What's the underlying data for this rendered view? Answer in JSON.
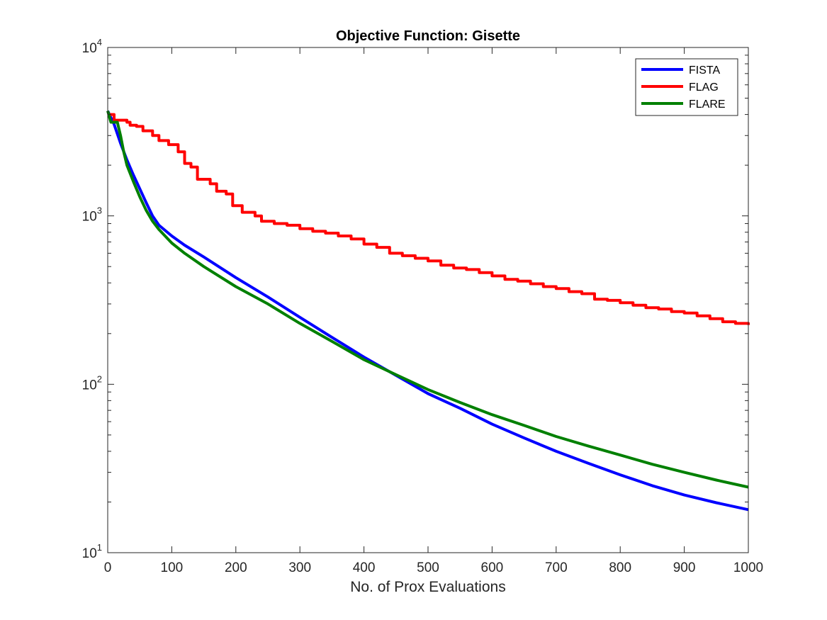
{
  "chart_data": {
    "type": "line",
    "title": "Objective Function: Gisette",
    "xlabel": "No. of Prox Evaluations",
    "ylabel": "",
    "xlim": [
      0,
      1000
    ],
    "ylim": [
      10,
      10000
    ],
    "yscale": "log",
    "grid": false,
    "legend_position": "top-right",
    "x_ticks": [
      0,
      100,
      200,
      300,
      400,
      500,
      600,
      700,
      800,
      900,
      1000
    ],
    "y_ticks": [
      {
        "value": 10,
        "base": "10",
        "exponent": "1"
      },
      {
        "value": 100,
        "base": "10",
        "exponent": "2"
      },
      {
        "value": 1000,
        "base": "10",
        "exponent": "3"
      },
      {
        "value": 10000,
        "base": "10",
        "exponent": "4"
      }
    ],
    "series": [
      {
        "name": "FISTA",
        "color": "#0000ff",
        "points": [
          [
            0,
            4200
          ],
          [
            10,
            3500
          ],
          [
            20,
            2700
          ],
          [
            30,
            2150
          ],
          [
            40,
            1750
          ],
          [
            50,
            1450
          ],
          [
            60,
            1200
          ],
          [
            70,
            1000
          ],
          [
            80,
            880
          ],
          [
            100,
            760
          ],
          [
            120,
            670
          ],
          [
            150,
            570
          ],
          [
            200,
            430
          ],
          [
            250,
            330
          ],
          [
            300,
            250
          ],
          [
            350,
            190
          ],
          [
            400,
            145
          ],
          [
            450,
            113
          ],
          [
            500,
            88
          ],
          [
            550,
            72
          ],
          [
            600,
            58
          ],
          [
            650,
            48
          ],
          [
            700,
            40
          ],
          [
            750,
            34
          ],
          [
            800,
            29
          ],
          [
            850,
            25
          ],
          [
            900,
            22
          ],
          [
            950,
            19.8
          ],
          [
            1000,
            18
          ]
        ]
      },
      {
        "name": "FLAG",
        "color": "#ff0000",
        "step": true,
        "points": [
          [
            0,
            4000
          ],
          [
            10,
            3700
          ],
          [
            30,
            3600
          ],
          [
            35,
            3450
          ],
          [
            45,
            3400
          ],
          [
            55,
            3200
          ],
          [
            70,
            3000
          ],
          [
            80,
            2800
          ],
          [
            95,
            2650
          ],
          [
            110,
            2400
          ],
          [
            120,
            2050
          ],
          [
            130,
            1950
          ],
          [
            140,
            1650
          ],
          [
            160,
            1550
          ],
          [
            170,
            1400
          ],
          [
            185,
            1350
          ],
          [
            195,
            1150
          ],
          [
            210,
            1050
          ],
          [
            230,
            1000
          ],
          [
            240,
            930
          ],
          [
            260,
            900
          ],
          [
            280,
            880
          ],
          [
            300,
            840
          ],
          [
            320,
            810
          ],
          [
            340,
            790
          ],
          [
            360,
            760
          ],
          [
            380,
            730
          ],
          [
            400,
            680
          ],
          [
            420,
            650
          ],
          [
            440,
            600
          ],
          [
            460,
            580
          ],
          [
            480,
            560
          ],
          [
            500,
            540
          ],
          [
            520,
            510
          ],
          [
            540,
            490
          ],
          [
            560,
            480
          ],
          [
            580,
            460
          ],
          [
            600,
            440
          ],
          [
            620,
            420
          ],
          [
            640,
            410
          ],
          [
            660,
            395
          ],
          [
            680,
            380
          ],
          [
            700,
            370
          ],
          [
            720,
            355
          ],
          [
            740,
            345
          ],
          [
            760,
            320
          ],
          [
            780,
            315
          ],
          [
            800,
            305
          ],
          [
            820,
            295
          ],
          [
            840,
            285
          ],
          [
            860,
            280
          ],
          [
            880,
            270
          ],
          [
            900,
            265
          ],
          [
            920,
            255
          ],
          [
            940,
            245
          ],
          [
            960,
            235
          ],
          [
            980,
            230
          ],
          [
            1000,
            225
          ]
        ]
      },
      {
        "name": "FLARE",
        "color": "#008000",
        "points": [
          [
            0,
            4200
          ],
          [
            5,
            3600
          ],
          [
            15,
            3600
          ],
          [
            20,
            3000
          ],
          [
            25,
            2400
          ],
          [
            30,
            2000
          ],
          [
            40,
            1600
          ],
          [
            50,
            1300
          ],
          [
            60,
            1080
          ],
          [
            70,
            930
          ],
          [
            80,
            830
          ],
          [
            100,
            690
          ],
          [
            120,
            600
          ],
          [
            150,
            500
          ],
          [
            200,
            380
          ],
          [
            250,
            300
          ],
          [
            300,
            230
          ],
          [
            350,
            180
          ],
          [
            400,
            140
          ],
          [
            450,
            114
          ],
          [
            500,
            93
          ],
          [
            550,
            78
          ],
          [
            600,
            66
          ],
          [
            650,
            57
          ],
          [
            700,
            49
          ],
          [
            750,
            43
          ],
          [
            800,
            38
          ],
          [
            850,
            33.5
          ],
          [
            900,
            30
          ],
          [
            950,
            27
          ],
          [
            1000,
            24.5
          ]
        ]
      }
    ]
  }
}
